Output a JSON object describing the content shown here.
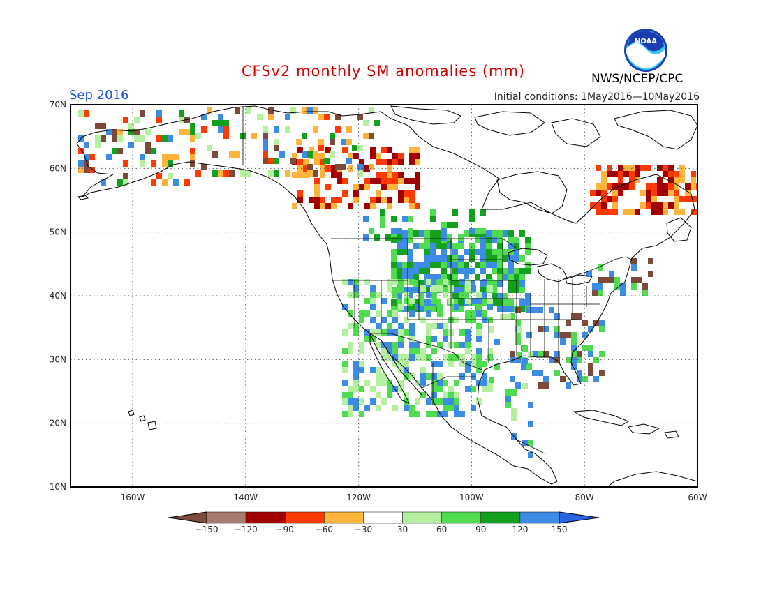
{
  "header": {
    "title": "CFSv2 monthly SM anomalies (mm)",
    "valid_month": "Sep 2016",
    "initial_conditions": "Initial conditions: 1May2016—10May2016",
    "agency": "NWS/NCEP/CPC",
    "logo_text": "NOAA"
  },
  "map": {
    "lat_labels": [
      "70N",
      "60N",
      "50N",
      "40N",
      "30N",
      "20N",
      "10N"
    ],
    "lon_labels": [
      "160W",
      "140W",
      "120W",
      "100W",
      "80W",
      "60W"
    ],
    "lat_range": [
      10,
      70
    ],
    "lon_range": [
      -171,
      -60
    ],
    "gridlines": "dotted"
  },
  "colorbar": {
    "labels": [
      "−150",
      "−120",
      "−90",
      "−60",
      "−30",
      "30",
      "60",
      "90",
      "120",
      "150"
    ],
    "colors": [
      "#7b4a3a",
      "#a87b6e",
      "#a10000",
      "#ff3a00",
      "#ffb43c",
      "#ffffff",
      "#b4f0a0",
      "#50dc50",
      "#12a01e",
      "#3c8ce6",
      "#2864e6"
    ]
  },
  "anomaly_regions": [
    {
      "region": "Alaska / Yukon",
      "sign": "mixed",
      "colors": [
        "#ffb43c",
        "#ff3a00",
        "#7b4a3a",
        "#12a01e",
        "#3c8ce6",
        "#b4f0a0"
      ]
    },
    {
      "region": "Western Canada (Alberta)",
      "sign": "dry",
      "colors": [
        "#a10000",
        "#ff3a00",
        "#ffb43c"
      ]
    },
    {
      "region": "Northern Quebec / Labrador",
      "sign": "dry",
      "colors": [
        "#a10000",
        "#ff3a00",
        "#ffb43c"
      ]
    },
    {
      "region": "Central US Plains",
      "sign": "wet",
      "colors": [
        "#50dc50",
        "#12a01e",
        "#3c8ce6"
      ]
    },
    {
      "region": "Southwest US / Mexico",
      "sign": "wet",
      "colors": [
        "#b4f0a0",
        "#50dc50",
        "#3c8ce6"
      ]
    },
    {
      "region": "Southeast US",
      "sign": "mixed",
      "colors": [
        "#50dc50",
        "#3c8ce6",
        "#7b4a3a"
      ]
    }
  ]
}
